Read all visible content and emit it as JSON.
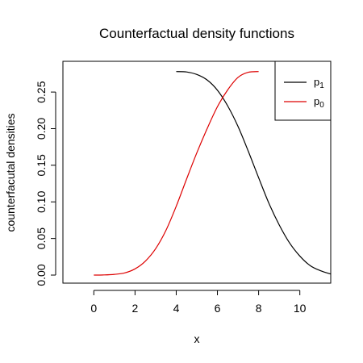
{
  "chart_data": {
    "type": "line",
    "title": "Counterfactual density functions",
    "xlabel": "x",
    "ylabel": "counterfacutal densities",
    "xlim": [
      -1.5,
      11.5
    ],
    "ylim": [
      -0.011,
      0.292
    ],
    "x_ticks": [
      0,
      2,
      4,
      6,
      8,
      10
    ],
    "y_ticks": [
      0.0,
      0.05,
      0.1,
      0.15,
      0.2,
      0.25
    ],
    "x_tick_labels": [
      "0",
      "2",
      "4",
      "6",
      "8",
      "10"
    ],
    "y_tick_labels": [
      "0.00",
      "0.05",
      "0.10",
      "0.15",
      "0.20",
      "0.25"
    ],
    "grid": false,
    "legend_position": "top-right",
    "series": [
      {
        "name": "p",
        "subscript": "1",
        "color": "#000000",
        "x": [
          4.0,
          4.5,
          5.0,
          5.5,
          6.0,
          6.5,
          7.0,
          7.5,
          8.0,
          8.5,
          9.0,
          9.5,
          10.0,
          10.5,
          11.0,
          11.5
        ],
        "values": [
          0.278,
          0.2775,
          0.274,
          0.2665,
          0.2525,
          0.231,
          0.203,
          0.169,
          0.133,
          0.098,
          0.0685,
          0.044,
          0.026,
          0.013,
          0.006,
          0.0015
        ]
      },
      {
        "name": "p",
        "subscript": "0",
        "color": "#dd0000",
        "x": [
          0.0,
          0.5,
          1.0,
          1.5,
          2.0,
          2.5,
          3.0,
          3.5,
          4.0,
          4.5,
          5.0,
          5.5,
          6.0,
          6.5,
          7.0,
          7.5,
          8.0
        ],
        "values": [
          0.0,
          0.0002,
          0.001,
          0.003,
          0.0085,
          0.019,
          0.036,
          0.061,
          0.094,
          0.131,
          0.167,
          0.2,
          0.23,
          0.253,
          0.27,
          0.277,
          0.278
        ]
      }
    ]
  }
}
